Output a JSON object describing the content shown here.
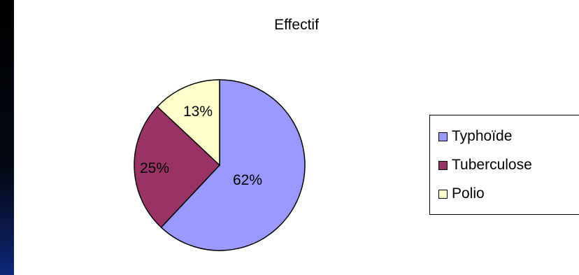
{
  "chart_data": {
    "type": "pie",
    "title": "Effectif",
    "categories": [
      "Typhoïde",
      "Tuberculose",
      "Polio"
    ],
    "values": [
      62,
      25,
      13
    ],
    "labels": [
      "62%",
      "25%",
      "13%"
    ],
    "colors": [
      "#9999ff",
      "#993366",
      "#ffffcc"
    ],
    "legend_position": "right"
  }
}
